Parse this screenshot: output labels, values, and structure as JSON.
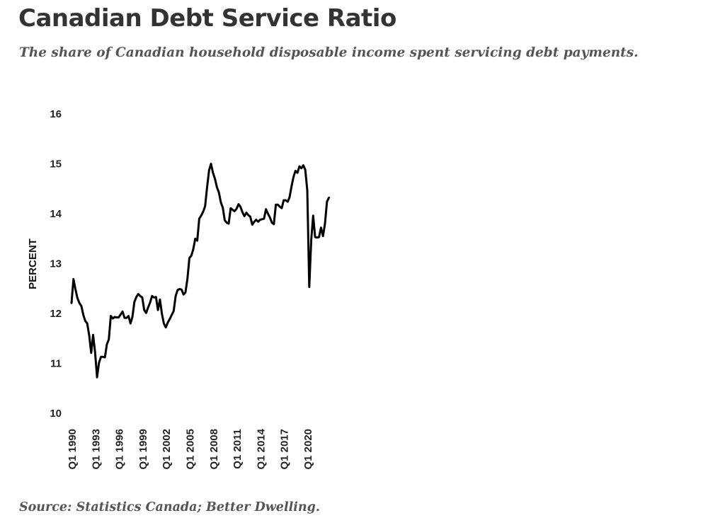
{
  "header": {
    "title": "Canadian Debt Service Ratio",
    "subtitle": "The share of Canadian household disposable income spent servicing debt payments."
  },
  "footer": {
    "source": "Source: Statistics Canada; Better Dwelling."
  },
  "chart_data": {
    "type": "line",
    "title": "Canadian Debt Service Ratio",
    "subtitle": "The share of Canadian household disposable income spent servicing debt payments.",
    "xlabel": "",
    "ylabel": "PERCENT",
    "ylim": [
      10,
      16
    ],
    "yticks": [
      10,
      11,
      12,
      13,
      14,
      15,
      16
    ],
    "xticks": [
      "Q1 1990",
      "Q1 1993",
      "Q1 1996",
      "Q1 1999",
      "Q1 2002",
      "Q1 2005",
      "Q1 2008",
      "Q1 2011",
      "Q1 2014",
      "Q1 2017",
      "Q1 2020"
    ],
    "grid": false,
    "line_color": "#000000",
    "series": [
      {
        "x": [
          "Q1 1990",
          "Q2 1990",
          "Q3 1990",
          "Q4 1990",
          "Q1 1991",
          "Q2 1991",
          "Q3 1991",
          "Q4 1991",
          "Q1 1992",
          "Q2 1992",
          "Q3 1992",
          "Q4 1992",
          "Q1 1993",
          "Q2 1993",
          "Q3 1993",
          "Q4 1993",
          "Q1 1994",
          "Q2 1994",
          "Q3 1994",
          "Q4 1994",
          "Q1 1995",
          "Q2 1995",
          "Q3 1995",
          "Q4 1995",
          "Q1 1996",
          "Q2 1996",
          "Q3 1996",
          "Q4 1996",
          "Q1 1997",
          "Q2 1997",
          "Q3 1997",
          "Q4 1997",
          "Q1 1998",
          "Q2 1998",
          "Q3 1998",
          "Q4 1998",
          "Q1 1999",
          "Q2 1999",
          "Q3 1999",
          "Q4 1999",
          "Q1 2000",
          "Q2 2000",
          "Q3 2000",
          "Q4 2000",
          "Q1 2001",
          "Q2 2001",
          "Q3 2001",
          "Q4 2001",
          "Q1 2002",
          "Q2 2002",
          "Q3 2002",
          "Q4 2002",
          "Q1 2003",
          "Q2 2003",
          "Q3 2003",
          "Q4 2003",
          "Q1 2004",
          "Q2 2004",
          "Q3 2004",
          "Q4 2004",
          "Q1 2005",
          "Q2 2005",
          "Q3 2005",
          "Q4 2005",
          "Q1 2006",
          "Q2 2006",
          "Q3 2006",
          "Q4 2006",
          "Q1 2007",
          "Q2 2007",
          "Q3 2007",
          "Q4 2007",
          "Q1 2008",
          "Q2 2008",
          "Q3 2008",
          "Q4 2008",
          "Q1 2009",
          "Q2 2009",
          "Q3 2009",
          "Q4 2009",
          "Q1 2010",
          "Q2 2010",
          "Q3 2010",
          "Q4 2010",
          "Q1 2011",
          "Q2 2011",
          "Q3 2011",
          "Q4 2011",
          "Q1 2012",
          "Q2 2012",
          "Q3 2012",
          "Q4 2012",
          "Q1 2013",
          "Q2 2013",
          "Q3 2013",
          "Q4 2013",
          "Q1 2014",
          "Q2 2014",
          "Q3 2014",
          "Q4 2014",
          "Q1 2015",
          "Q2 2015",
          "Q3 2015",
          "Q4 2015",
          "Q1 2016",
          "Q2 2016",
          "Q3 2016",
          "Q4 2016",
          "Q1 2017",
          "Q2 2017",
          "Q3 2017",
          "Q4 2017",
          "Q1 2018",
          "Q2 2018",
          "Q3 2018",
          "Q4 2018",
          "Q1 2019",
          "Q2 2019",
          "Q3 2019",
          "Q4 2019",
          "Q1 2020",
          "Q2 2020",
          "Q3 2020",
          "Q4 2020",
          "Q1 2021",
          "Q2 2021",
          "Q3 2021",
          "Q4 2021",
          "Q1 2022",
          "Q2 2022",
          "Q3 2022",
          "Q4 2022"
        ],
        "values": [
          12.21,
          12.69,
          12.49,
          12.31,
          12.21,
          12.15,
          11.97,
          11.85,
          11.8,
          11.56,
          11.21,
          11.57,
          11.22,
          10.72,
          11.01,
          11.13,
          11.13,
          11.12,
          11.38,
          11.48,
          11.95,
          11.9,
          11.93,
          11.92,
          11.92,
          11.98,
          12.04,
          11.91,
          11.91,
          11.95,
          11.8,
          11.93,
          12.23,
          12.33,
          12.39,
          12.35,
          12.32,
          12.07,
          12.01,
          12.12,
          12.22,
          12.35,
          12.32,
          12.33,
          12.07,
          12.28,
          12.0,
          11.8,
          11.72,
          11.82,
          11.89,
          11.97,
          12.05,
          12.35,
          12.47,
          12.49,
          12.48,
          12.38,
          12.42,
          12.69,
          13.11,
          13.16,
          13.29,
          13.5,
          13.46,
          13.9,
          13.96,
          14.04,
          14.15,
          14.53,
          14.87,
          15.0,
          14.82,
          14.7,
          14.53,
          14.43,
          14.23,
          14.12,
          13.87,
          13.82,
          13.8,
          14.11,
          14.08,
          14.05,
          14.1,
          14.19,
          14.14,
          14.03,
          13.95,
          14.02,
          13.97,
          13.94,
          13.78,
          13.84,
          13.88,
          13.84,
          13.88,
          13.89,
          13.9,
          14.09,
          14.0,
          13.92,
          13.82,
          13.79,
          14.18,
          14.18,
          14.14,
          14.11,
          14.27,
          14.27,
          14.24,
          14.33,
          14.55,
          14.74,
          14.86,
          14.82,
          14.95,
          14.91,
          14.97,
          14.88,
          14.47,
          12.53,
          13.48,
          13.96,
          13.53,
          13.52,
          13.53,
          13.72,
          13.55,
          13.8,
          14.24,
          14.32
        ]
      }
    ]
  }
}
